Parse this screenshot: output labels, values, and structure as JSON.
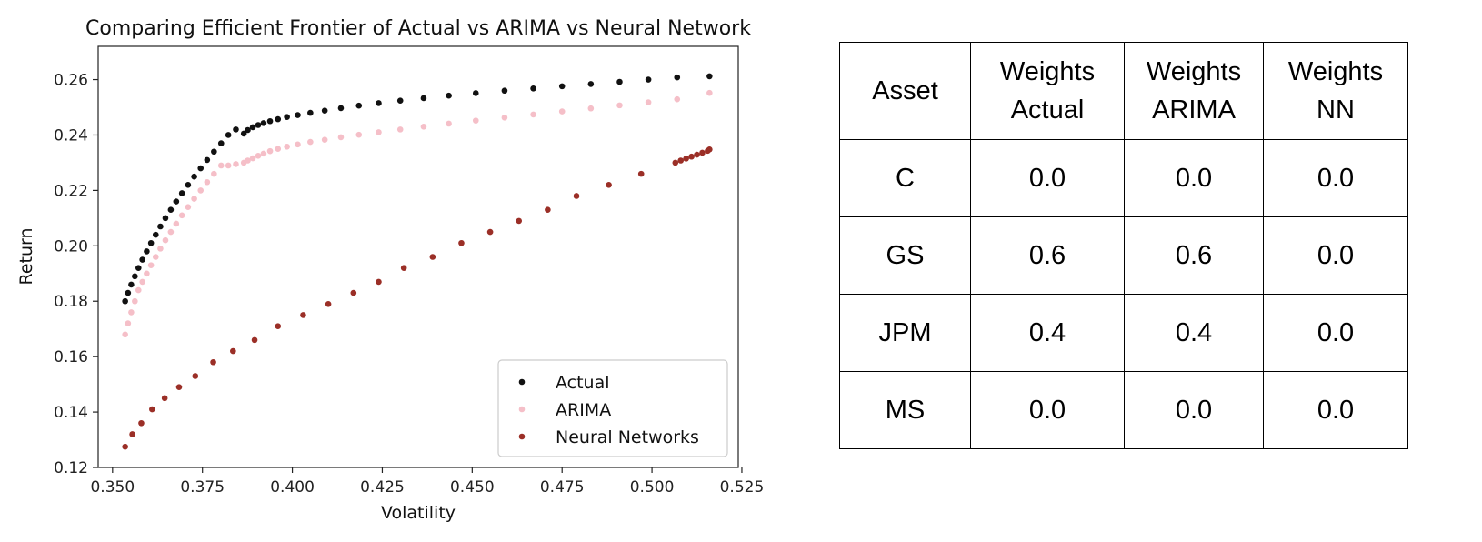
{
  "chart_data": {
    "type": "scatter",
    "title": "Comparing Efficient Frontier of Actual vs ARIMA vs Neural Network",
    "xlabel": "Volatility",
    "ylabel": "Return",
    "xlim": [
      0.346,
      0.524
    ],
    "ylim": [
      0.12,
      0.272
    ],
    "xticks": [
      0.35,
      0.375,
      0.4,
      0.425,
      0.45,
      0.475,
      0.5,
      0.525
    ],
    "xtick_labels": [
      "0.350",
      "0.375",
      "0.400",
      "0.425",
      "0.450",
      "0.475",
      "0.500",
      "0.525"
    ],
    "yticks": [
      0.12,
      0.14,
      0.16,
      0.18,
      0.2,
      0.22,
      0.24,
      0.26
    ],
    "ytick_labels": [
      "0.12",
      "0.14",
      "0.16",
      "0.18",
      "0.20",
      "0.22",
      "0.24",
      "0.26"
    ],
    "grid": false,
    "legend": "bottom-right",
    "series": [
      {
        "name": "Actual",
        "color": "#111111",
        "x": [
          0.3535,
          0.3543,
          0.3552,
          0.3562,
          0.3572,
          0.3583,
          0.3595,
          0.3607,
          0.362,
          0.3633,
          0.3647,
          0.3662,
          0.3677,
          0.3693,
          0.371,
          0.3727,
          0.3745,
          0.3763,
          0.3782,
          0.3802,
          0.3822,
          0.3843,
          0.3865,
          0.3876,
          0.389,
          0.3905,
          0.392,
          0.3938,
          0.396,
          0.3985,
          0.4015,
          0.405,
          0.409,
          0.4135,
          0.4185,
          0.424,
          0.43,
          0.4365,
          0.4435,
          0.451,
          0.459,
          0.467,
          0.475,
          0.483,
          0.491,
          0.499,
          0.507,
          0.516
        ],
        "y": [
          0.18,
          0.183,
          0.186,
          0.189,
          0.192,
          0.195,
          0.198,
          0.201,
          0.204,
          0.207,
          0.21,
          0.213,
          0.216,
          0.219,
          0.222,
          0.225,
          0.228,
          0.231,
          0.234,
          0.237,
          0.24,
          0.242,
          0.2405,
          0.2418,
          0.2428,
          0.2436,
          0.2443,
          0.245,
          0.2457,
          0.2465,
          0.2472,
          0.248,
          0.2488,
          0.2497,
          0.2506,
          0.2515,
          0.2524,
          0.2533,
          0.2542,
          0.2551,
          0.256,
          0.2568,
          0.2576,
          0.2584,
          0.2592,
          0.26,
          0.2608,
          0.2612
        ]
      },
      {
        "name": "ARIMA",
        "color": "#f5bfc8",
        "x": [
          0.3535,
          0.3543,
          0.3552,
          0.3562,
          0.3572,
          0.3583,
          0.3595,
          0.3607,
          0.362,
          0.3633,
          0.3647,
          0.3662,
          0.3677,
          0.3693,
          0.371,
          0.3727,
          0.3745,
          0.3763,
          0.3782,
          0.3802,
          0.3822,
          0.3843,
          0.3865,
          0.3876,
          0.389,
          0.3905,
          0.392,
          0.3938,
          0.396,
          0.3985,
          0.4015,
          0.405,
          0.409,
          0.4135,
          0.4185,
          0.424,
          0.43,
          0.4365,
          0.4435,
          0.451,
          0.459,
          0.467,
          0.475,
          0.483,
          0.491,
          0.499,
          0.507,
          0.516
        ],
        "y": [
          0.168,
          0.172,
          0.176,
          0.18,
          0.184,
          0.187,
          0.19,
          0.193,
          0.196,
          0.199,
          0.202,
          0.205,
          0.208,
          0.211,
          0.214,
          0.217,
          0.22,
          0.223,
          0.226,
          0.229,
          0.229,
          0.2295,
          0.23,
          0.2308,
          0.2316,
          0.2325,
          0.2333,
          0.2342,
          0.235,
          0.2358,
          0.2366,
          0.2375,
          0.2383,
          0.2392,
          0.2401,
          0.241,
          0.242,
          0.243,
          0.2441,
          0.2452,
          0.2463,
          0.2474,
          0.2485,
          0.2496,
          0.2507,
          0.2518,
          0.2529,
          0.2552
        ]
      },
      {
        "name": "Neural Networks",
        "color": "#9b2f27",
        "x": [
          0.3535,
          0.3555,
          0.358,
          0.361,
          0.3645,
          0.3685,
          0.373,
          0.378,
          0.3835,
          0.3895,
          0.396,
          0.403,
          0.41,
          0.417,
          0.424,
          0.431,
          0.439,
          0.447,
          0.455,
          0.463,
          0.471,
          0.479,
          0.488,
          0.497,
          0.5065,
          0.508,
          0.5095,
          0.511,
          0.5125,
          0.514,
          0.5155,
          0.516
        ],
        "y": [
          0.1275,
          0.132,
          0.136,
          0.141,
          0.145,
          0.149,
          0.153,
          0.158,
          0.162,
          0.166,
          0.171,
          0.175,
          0.179,
          0.183,
          0.187,
          0.192,
          0.196,
          0.201,
          0.205,
          0.209,
          0.213,
          0.218,
          0.222,
          0.226,
          0.23,
          0.2308,
          0.2315,
          0.2322,
          0.2329,
          0.2336,
          0.2343,
          0.2348
        ]
      }
    ]
  },
  "table": {
    "headers": [
      {
        "line1": "Asset",
        "line2": ""
      },
      {
        "line1": "Weights",
        "line2": "Actual"
      },
      {
        "line1": "Weights",
        "line2": "ARIMA"
      },
      {
        "line1": "Weights",
        "line2": "NN"
      }
    ],
    "rows": [
      {
        "asset": "C",
        "actual": "0.0",
        "arima": "0.0",
        "nn": "0.0"
      },
      {
        "asset": "GS",
        "actual": "0.6",
        "arima": "0.6",
        "nn": "0.0"
      },
      {
        "asset": "JPM",
        "actual": "0.4",
        "arima": "0.4",
        "nn": "0.0"
      },
      {
        "asset": "MS",
        "actual": "0.0",
        "arima": "0.0",
        "nn": "0.0"
      }
    ]
  }
}
